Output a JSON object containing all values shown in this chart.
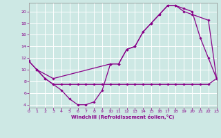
{
  "xlabel": "Windchill (Refroidissement éolien,°C)",
  "bg_color": "#cde8e4",
  "grid_color": "#ffffff",
  "line_color": "#880088",
  "xlim": [
    0,
    23
  ],
  "ylim": [
    3.5,
    21.5
  ],
  "yticks": [
    4,
    6,
    8,
    10,
    12,
    14,
    16,
    18,
    20
  ],
  "xticks": [
    0,
    1,
    2,
    3,
    4,
    5,
    6,
    7,
    8,
    9,
    10,
    11,
    12,
    13,
    14,
    15,
    16,
    17,
    18,
    19,
    20,
    21,
    22,
    23
  ],
  "line1_x": [
    0,
    1,
    2,
    3,
    4,
    5,
    6,
    7,
    8,
    9,
    10,
    11,
    12,
    13,
    14,
    15,
    16,
    17,
    18,
    19,
    20,
    21,
    22,
    23
  ],
  "line1_y": [
    11.5,
    10.0,
    8.5,
    7.5,
    6.5,
    5.0,
    4.0,
    4.0,
    4.5,
    6.5,
    11.0,
    11.0,
    13.5,
    14.0,
    16.5,
    18.0,
    19.5,
    21.0,
    21.0,
    20.5,
    20.0,
    15.5,
    12.0,
    8.5
  ],
  "line2_x": [
    1,
    2,
    3,
    4,
    5,
    6,
    7,
    8,
    9,
    10,
    11,
    12,
    13,
    14,
    15,
    16,
    17,
    18,
    19,
    20,
    21,
    22,
    23
  ],
  "line2_y": [
    10.0,
    8.5,
    7.5,
    7.5,
    7.5,
    7.5,
    7.5,
    7.5,
    7.5,
    7.5,
    7.5,
    7.5,
    7.5,
    7.5,
    7.5,
    7.5,
    7.5,
    7.5,
    7.5,
    7.5,
    7.5,
    7.5,
    8.5
  ],
  "line3_x": [
    0,
    1,
    3,
    10,
    11,
    12,
    13,
    14,
    15,
    16,
    17,
    18,
    19,
    20,
    22,
    23
  ],
  "line3_y": [
    11.5,
    10.0,
    8.5,
    11.0,
    11.0,
    13.5,
    14.0,
    16.5,
    18.0,
    19.5,
    21.0,
    21.0,
    20.0,
    19.5,
    18.5,
    8.5
  ]
}
